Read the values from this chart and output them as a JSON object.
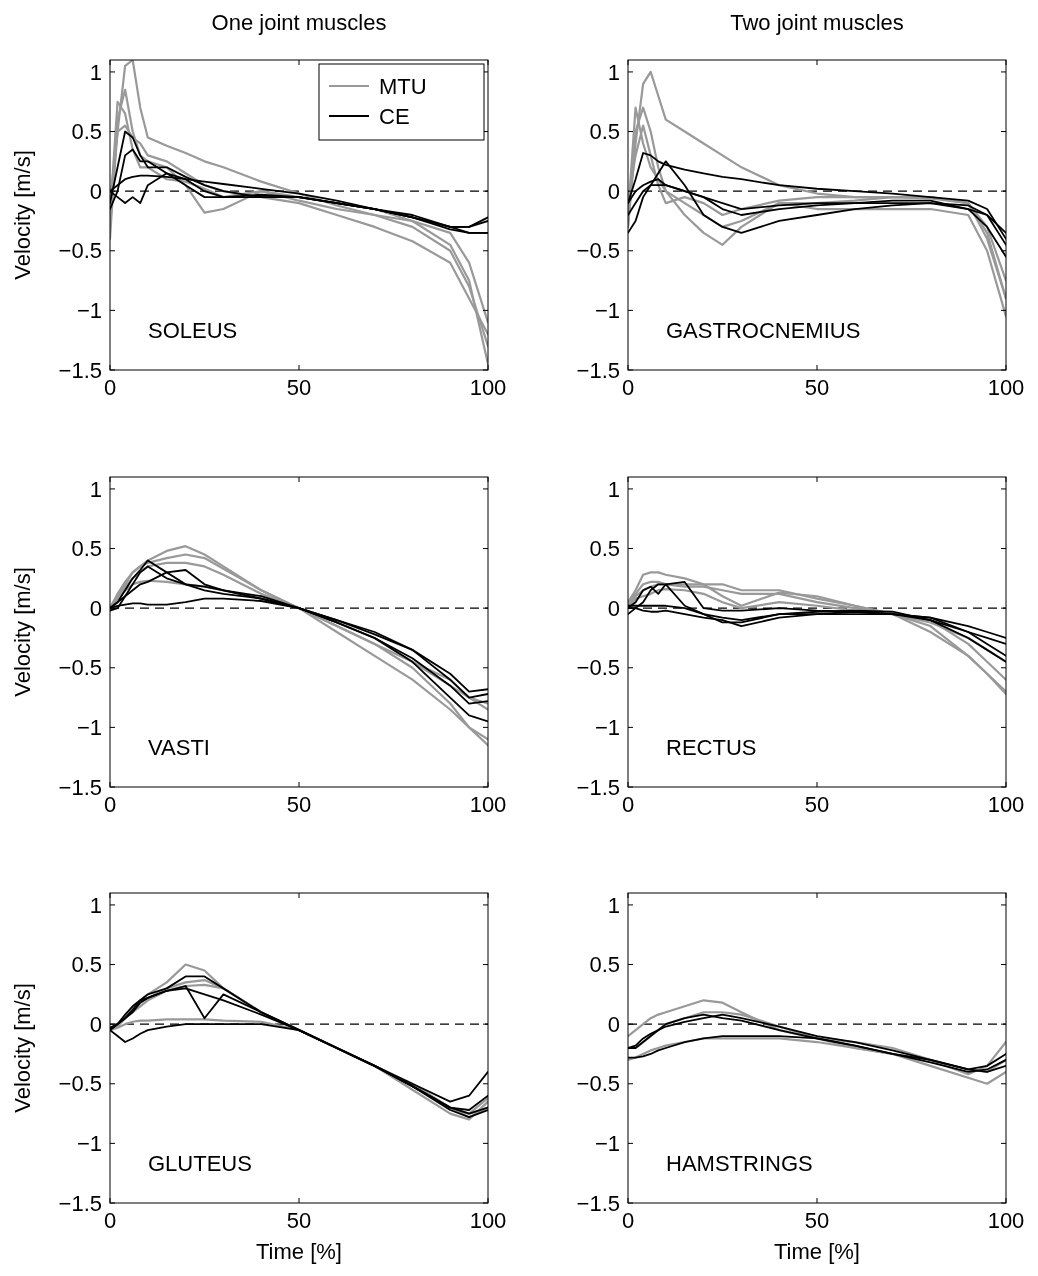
{
  "chart_data": [
    {
      "type": "line",
      "title": "One joint muscles",
      "ylabel": "Velocity [m/s]",
      "annotations": [
        "SOLEUS"
      ],
      "legend": "top right",
      "xlim": [
        0,
        100
      ],
      "xticks": [
        0,
        50,
        100
      ],
      "ylim": [
        -1.5,
        1.1
      ],
      "yticks": [
        -1.5,
        -1,
        -0.5,
        0,
        0.5,
        1
      ],
      "ref_lines": [
        {
          "axis": "y",
          "value": 0,
          "color": "#000000",
          "line_style": "dashed"
        }
      ],
      "x": [
        0,
        2,
        4,
        6,
        8,
        10,
        15,
        20,
        25,
        30,
        40,
        50,
        60,
        70,
        80,
        90,
        95,
        100
      ],
      "series": [
        {
          "name": "MTU",
          "color": "#999999",
          "values": [
            -0.3,
            0.5,
            1.05,
            1.1,
            0.7,
            0.45,
            0.38,
            0.32,
            0.25,
            0.2,
            0.08,
            -0.02,
            -0.12,
            -0.2,
            -0.3,
            -0.5,
            -0.8,
            -1.3
          ]
        },
        {
          "color": "#999999",
          "values": [
            -0.4,
            0.6,
            0.85,
            0.5,
            0.3,
            0.25,
            0.2,
            0.05,
            -0.18,
            -0.15,
            0,
            -0.05,
            -0.1,
            -0.15,
            -0.25,
            -0.45,
            -0.75,
            -1.45
          ]
        },
        {
          "color": "#999999",
          "values": [
            -0.2,
            0.75,
            0.65,
            0.35,
            0.2,
            0.2,
            0.1,
            0.08,
            0.02,
            -0.05,
            0,
            -0.08,
            -0.15,
            -0.2,
            -0.25,
            -0.35,
            -0.6,
            -1.1
          ]
        },
        {
          "color": "#999999",
          "values": [
            -0.1,
            0.5,
            0.55,
            0.45,
            0.4,
            0.3,
            0.25,
            0.15,
            0.05,
            0,
            -0.05,
            -0.1,
            -0.2,
            -0.3,
            -0.42,
            -0.6,
            -0.9,
            -1.2
          ]
        },
        {
          "name": "CE",
          "color": "#000000",
          "values": [
            -0.1,
            0.2,
            0.5,
            0.45,
            0.3,
            0.2,
            0.2,
            0.12,
            0.05,
            0,
            -0.05,
            -0.05,
            -0.1,
            -0.15,
            -0.2,
            -0.3,
            -0.3,
            -0.22
          ]
        },
        {
          "color": "#000000",
          "values": [
            -0.15,
            0,
            0.3,
            0.35,
            0.25,
            0.25,
            0.15,
            0.05,
            -0.05,
            -0.05,
            -0.03,
            -0.05,
            -0.1,
            -0.15,
            -0.22,
            -0.3,
            -0.3,
            -0.25
          ]
        },
        {
          "color": "#000000",
          "values": [
            0,
            -0.05,
            -0.1,
            -0.05,
            -0.1,
            0.05,
            0.15,
            0.1,
            0,
            -0.05,
            -0.05,
            -0.05,
            -0.1,
            -0.15,
            -0.22,
            -0.32,
            -0.35,
            -0.35
          ]
        },
        {
          "color": "#000000",
          "values": [
            0,
            0.05,
            0.1,
            0.12,
            0.13,
            0.13,
            0.12,
            0.1,
            0.08,
            0.06,
            0.02,
            -0.02,
            -0.08,
            -0.15,
            -0.22,
            -0.3,
            -0.35,
            -0.35
          ]
        }
      ]
    },
    {
      "type": "line",
      "title": "Two joint muscles",
      "annotations": [
        "GASTROCNEMIUS"
      ],
      "xlim": [
        0,
        100
      ],
      "xticks": [
        0,
        50,
        100
      ],
      "ylim": [
        -1.5,
        1.1
      ],
      "yticks": [
        -1.5,
        -1,
        -0.5,
        0,
        0.5,
        1
      ],
      "ref_lines": [
        {
          "axis": "y",
          "value": 0,
          "color": "#000000",
          "line_style": "dashed"
        }
      ],
      "x": [
        0,
        2,
        4,
        6,
        8,
        10,
        15,
        20,
        25,
        30,
        40,
        50,
        60,
        70,
        80,
        90,
        95,
        100
      ],
      "series": [
        {
          "color": "#999999",
          "values": [
            -0.3,
            0.4,
            0.9,
            1.0,
            0.8,
            0.6,
            0.5,
            0.4,
            0.3,
            0.2,
            0.05,
            -0.02,
            -0.05,
            -0.05,
            -0.05,
            -0.1,
            -0.35,
            -0.9
          ]
        },
        {
          "color": "#999999",
          "values": [
            -0.3,
            0.5,
            0.7,
            0.5,
            0.2,
            0,
            -0.2,
            -0.35,
            -0.45,
            -0.3,
            -0.1,
            -0.15,
            -0.15,
            -0.15,
            -0.15,
            -0.2,
            -0.5,
            -1.05
          ]
        },
        {
          "color": "#999999",
          "values": [
            -0.2,
            0.7,
            0.4,
            0.2,
            0.1,
            0,
            -0.1,
            -0.2,
            -0.3,
            -0.25,
            -0.1,
            -0.1,
            -0.08,
            -0.05,
            -0.05,
            -0.1,
            -0.3,
            -0.75
          ]
        },
        {
          "color": "#999999",
          "values": [
            -0.1,
            0.3,
            0.55,
            0.3,
            0.05,
            -0.1,
            -0.05,
            -0.1,
            -0.2,
            -0.15,
            -0.08,
            -0.05,
            -0.05,
            -0.05,
            -0.06,
            -0.1,
            -0.4,
            -0.9
          ]
        },
        {
          "color": "#000000",
          "values": [
            -0.1,
            0.1,
            0.32,
            0.3,
            0.25,
            0.22,
            0.18,
            0.15,
            0.12,
            0.1,
            0.05,
            0.02,
            0,
            -0.02,
            -0.05,
            -0.08,
            -0.15,
            -0.4
          ]
        },
        {
          "color": "#000000",
          "values": [
            -0.35,
            -0.25,
            -0.05,
            0.05,
            0.15,
            0.25,
            0.05,
            -0.2,
            -0.3,
            -0.35,
            -0.25,
            -0.2,
            -0.15,
            -0.12,
            -0.1,
            -0.12,
            -0.2,
            -0.45
          ]
        },
        {
          "color": "#000000",
          "values": [
            -0.2,
            -0.1,
            0,
            0.05,
            0.05,
            0.05,
            0,
            -0.05,
            -0.1,
            -0.15,
            -0.12,
            -0.1,
            -0.1,
            -0.08,
            -0.08,
            -0.15,
            -0.2,
            -0.35
          ]
        },
        {
          "color": "#000000",
          "values": [
            -0.1,
            0,
            0.05,
            0.08,
            0.1,
            0.05,
            0,
            -0.05,
            -0.15,
            -0.2,
            -0.15,
            -0.12,
            -0.1,
            -0.1,
            -0.1,
            -0.15,
            -0.3,
            -0.55
          ]
        }
      ]
    },
    {
      "type": "line",
      "ylabel": "Velocity [m/s]",
      "annotations": [
        "VASTI"
      ],
      "xlim": [
        0,
        100
      ],
      "xticks": [
        0,
        50,
        100
      ],
      "ylim": [
        -1.5,
        1.1
      ],
      "yticks": [
        -1.5,
        -1,
        -0.5,
        0,
        0.5,
        1
      ],
      "ref_lines": [
        {
          "axis": "y",
          "value": 0,
          "color": "#000000",
          "line_style": "dashed"
        }
      ],
      "x": [
        0,
        2,
        4,
        6,
        8,
        10,
        15,
        20,
        25,
        30,
        40,
        50,
        60,
        70,
        80,
        90,
        95,
        100
      ],
      "series": [
        {
          "color": "#999999",
          "values": [
            0,
            0.1,
            0.2,
            0.3,
            0.35,
            0.4,
            0.48,
            0.52,
            0.45,
            0.35,
            0.15,
            0,
            -0.15,
            -0.3,
            -0.5,
            -0.8,
            -1.0,
            -1.15
          ]
        },
        {
          "color": "#999999",
          "values": [
            0,
            0.12,
            0.22,
            0.3,
            0.35,
            0.38,
            0.42,
            0.45,
            0.42,
            0.33,
            0.15,
            0,
            -0.2,
            -0.4,
            -0.6,
            -0.85,
            -1.0,
            -1.1
          ]
        },
        {
          "color": "#999999",
          "values": [
            0,
            0.1,
            0.18,
            0.25,
            0.3,
            0.35,
            0.38,
            0.38,
            0.35,
            0.28,
            0.12,
            0,
            -0.12,
            -0.25,
            -0.45,
            -0.65,
            -0.75,
            -0.85
          ]
        },
        {
          "color": "#999999",
          "values": [
            0,
            0.08,
            0.15,
            0.2,
            0.22,
            0.23,
            0.22,
            0.2,
            0.18,
            0.15,
            0.08,
            0,
            -0.15,
            -0.3,
            -0.45,
            -0.6,
            -0.75,
            -0.8
          ]
        },
        {
          "color": "#000000",
          "values": [
            0,
            0.05,
            0.15,
            0.25,
            0.32,
            0.4,
            0.3,
            0.2,
            0.18,
            0.15,
            0.08,
            0,
            -0.1,
            -0.22,
            -0.35,
            -0.6,
            -0.75,
            -0.72
          ]
        },
        {
          "color": "#000000",
          "values": [
            -0.02,
            0,
            0.1,
            0.2,
            0.3,
            0.35,
            0.25,
            0.2,
            0.15,
            0.12,
            0.08,
            0,
            -0.1,
            -0.2,
            -0.35,
            -0.55,
            -0.7,
            -0.68
          ]
        },
        {
          "color": "#000000",
          "values": [
            0,
            0.02,
            0.03,
            0.04,
            0.04,
            0.03,
            0.03,
            0.05,
            0.08,
            0.08,
            0.06,
            0,
            -0.12,
            -0.25,
            -0.42,
            -0.65,
            -0.8,
            -0.78
          ]
        },
        {
          "color": "#000000",
          "values": [
            0,
            0.05,
            0.1,
            0.15,
            0.2,
            0.22,
            0.3,
            0.32,
            0.2,
            0.15,
            0.1,
            0,
            -0.12,
            -0.25,
            -0.45,
            -0.75,
            -0.9,
            -0.95
          ]
        }
      ]
    },
    {
      "type": "line",
      "annotations": [
        "RECTUS"
      ],
      "xlim": [
        0,
        100
      ],
      "xticks": [
        0,
        50,
        100
      ],
      "ylim": [
        -1.5,
        1.1
      ],
      "yticks": [
        -1.5,
        -1,
        -0.5,
        0,
        0.5,
        1
      ],
      "ref_lines": [
        {
          "axis": "y",
          "value": 0,
          "color": "#000000",
          "line_style": "dashed"
        }
      ],
      "x": [
        0,
        2,
        4,
        6,
        8,
        10,
        15,
        20,
        25,
        30,
        40,
        50,
        60,
        70,
        80,
        90,
        95,
        100
      ],
      "series": [
        {
          "color": "#999999",
          "values": [
            0.05,
            0.15,
            0.28,
            0.3,
            0.3,
            0.28,
            0.25,
            0.2,
            0.2,
            0.15,
            0.15,
            0.08,
            0.02,
            -0.05,
            -0.15,
            -0.4,
            -0.55,
            -0.7
          ]
        },
        {
          "color": "#999999",
          "values": [
            0.05,
            0.12,
            0.2,
            0.22,
            0.22,
            0.2,
            0.18,
            0.18,
            0.15,
            0.12,
            0.12,
            0.05,
            0,
            -0.05,
            -0.1,
            -0.3,
            -0.45,
            -0.6
          ]
        },
        {
          "color": "#999999",
          "values": [
            0.02,
            0.1,
            0.15,
            0.18,
            0.2,
            0.2,
            0.2,
            0.2,
            0.1,
            0.02,
            0.13,
            0.1,
            0.02,
            -0.05,
            -0.2,
            -0.4,
            -0.55,
            -0.72
          ]
        },
        {
          "color": "#999999",
          "values": [
            0,
            0.08,
            0.1,
            0.12,
            0.15,
            0.16,
            0.15,
            0.12,
            0.05,
            0,
            0.05,
            0.02,
            -0.02,
            -0.05,
            -0.12,
            -0.25,
            -0.35,
            -0.45
          ]
        },
        {
          "color": "#000000",
          "values": [
            0,
            0.05,
            0.15,
            0.18,
            0.12,
            0.2,
            0.22,
            0,
            -0.02,
            -0.02,
            0,
            -0.02,
            -0.03,
            -0.05,
            -0.08,
            -0.15,
            -0.2,
            -0.25
          ]
        },
        {
          "color": "#000000",
          "values": [
            -0.05,
            0,
            0.05,
            0.15,
            0.2,
            0.2,
            0.02,
            -0.05,
            -0.08,
            -0.1,
            -0.05,
            -0.05,
            -0.05,
            -0.05,
            -0.08,
            -0.2,
            -0.3,
            -0.4
          ]
        },
        {
          "color": "#000000",
          "values": [
            0.02,
            0.02,
            0.02,
            0.02,
            0.02,
            0.02,
            0,
            -0.05,
            -0.12,
            -0.12,
            -0.05,
            -0.03,
            -0.02,
            -0.03,
            -0.1,
            -0.2,
            -0.25,
            -0.3
          ]
        },
        {
          "color": "#000000",
          "values": [
            0,
            0,
            -0.02,
            -0.03,
            -0.03,
            -0.02,
            -0.05,
            -0.08,
            -0.1,
            -0.15,
            -0.08,
            -0.05,
            -0.03,
            -0.05,
            -0.1,
            -0.25,
            -0.35,
            -0.45
          ]
        }
      ]
    },
    {
      "type": "line",
      "xlabel": "Time [%]",
      "ylabel": "Velocity [m/s]",
      "annotations": [
        "GLUTEUS"
      ],
      "xlim": [
        0,
        100
      ],
      "xticks": [
        0,
        50,
        100
      ],
      "ylim": [
        -1.5,
        1.1
      ],
      "yticks": [
        -1.5,
        -1,
        -0.5,
        0,
        0.5,
        1
      ],
      "ref_lines": [
        {
          "axis": "y",
          "value": 0,
          "color": "#000000",
          "line_style": "dashed"
        }
      ],
      "x": [
        0,
        2,
        4,
        6,
        8,
        10,
        15,
        20,
        25,
        30,
        40,
        50,
        60,
        70,
        80,
        90,
        95,
        100
      ],
      "series": [
        {
          "color": "#999999",
          "values": [
            -0.05,
            -0.02,
            0.05,
            0.15,
            0.2,
            0.25,
            0.35,
            0.5,
            0.45,
            0.3,
            0.1,
            -0.05,
            -0.2,
            -0.35,
            -0.55,
            -0.75,
            -0.8,
            -0.65
          ]
        },
        {
          "color": "#999999",
          "values": [
            -0.05,
            0,
            0.05,
            0.12,
            0.18,
            0.22,
            0.3,
            0.35,
            0.37,
            0.3,
            0.1,
            -0.05,
            -0.2,
            -0.35,
            -0.52,
            -0.7,
            -0.78,
            -0.7
          ]
        },
        {
          "color": "#999999",
          "values": [
            -0.05,
            -0.03,
            0,
            0.02,
            0.03,
            0.03,
            0.04,
            0.04,
            0.04,
            0.03,
            0.02,
            -0.05,
            -0.2,
            -0.35,
            -0.52,
            -0.7,
            -0.75,
            -0.62
          ]
        },
        {
          "color": "#999999",
          "values": [
            -0.03,
            0,
            0.05,
            0.1,
            0.15,
            0.2,
            0.28,
            0.32,
            0.33,
            0.3,
            0.1,
            -0.05,
            -0.2,
            -0.35,
            -0.5,
            -0.7,
            -0.75,
            -0.7
          ]
        },
        {
          "color": "#000000",
          "values": [
            -0.03,
            0,
            0.05,
            0.12,
            0.2,
            0.25,
            0.3,
            0.4,
            0.4,
            0.3,
            0.1,
            -0.05,
            -0.2,
            -0.35,
            -0.5,
            -0.65,
            -0.6,
            -0.4
          ]
        },
        {
          "color": "#000000",
          "values": [
            -0.05,
            -0.1,
            -0.15,
            -0.12,
            -0.08,
            -0.05,
            -0.02,
            0,
            0,
            0,
            0,
            -0.05,
            -0.2,
            -0.35,
            -0.52,
            -0.7,
            -0.72,
            -0.6
          ]
        },
        {
          "color": "#000000",
          "values": [
            -0.05,
            0,
            0.05,
            0.1,
            0.18,
            0.22,
            0.28,
            0.32,
            0.05,
            0.25,
            0.1,
            -0.05,
            -0.2,
            -0.35,
            -0.52,
            -0.7,
            -0.75,
            -0.7
          ]
        },
        {
          "color": "#000000",
          "values": [
            -0.05,
            0,
            0.08,
            0.15,
            0.2,
            0.22,
            0.28,
            0.3,
            0.25,
            0.2,
            0.08,
            -0.05,
            -0.2,
            -0.35,
            -0.52,
            -0.72,
            -0.78,
            -0.72
          ]
        }
      ]
    },
    {
      "type": "line",
      "xlabel": "Time [%]",
      "annotations": [
        "HAMSTRINGS"
      ],
      "xlim": [
        0,
        100
      ],
      "xticks": [
        0,
        50,
        100
      ],
      "ylim": [
        -1.5,
        1.1
      ],
      "yticks": [
        -1.5,
        -1,
        -0.5,
        0,
        0.5,
        1
      ],
      "ref_lines": [
        {
          "axis": "y",
          "value": 0,
          "color": "#000000",
          "line_style": "dashed"
        }
      ],
      "x": [
        0,
        2,
        4,
        6,
        8,
        10,
        15,
        20,
        25,
        30,
        40,
        50,
        60,
        70,
        80,
        90,
        95,
        100
      ],
      "series": [
        {
          "color": "#999999",
          "values": [
            -0.1,
            -0.05,
            0,
            0.05,
            0.08,
            0.1,
            0.15,
            0.2,
            0.18,
            0.1,
            -0.05,
            -0.12,
            -0.15,
            -0.2,
            -0.3,
            -0.42,
            -0.35,
            -0.15
          ]
        },
        {
          "color": "#999999",
          "values": [
            -0.2,
            -0.2,
            -0.15,
            -0.1,
            -0.05,
            0,
            0.05,
            0.1,
            0.1,
            0.08,
            -0.02,
            -0.12,
            -0.2,
            -0.25,
            -0.35,
            -0.45,
            -0.5,
            -0.4
          ]
        },
        {
          "color": "#999999",
          "values": [
            -0.3,
            -0.28,
            -0.25,
            -0.22,
            -0.2,
            -0.18,
            -0.15,
            -0.12,
            -0.12,
            -0.12,
            -0.12,
            -0.15,
            -0.2,
            -0.25,
            -0.3,
            -0.38,
            -0.4,
            -0.3
          ]
        },
        {
          "color": "#000000",
          "values": [
            -0.2,
            -0.2,
            -0.15,
            -0.1,
            -0.05,
            0,
            0.05,
            0.08,
            0.05,
            0.03,
            -0.05,
            -0.12,
            -0.18,
            -0.25,
            -0.32,
            -0.4,
            -0.38,
            -0.3
          ]
        },
        {
          "color": "#000000",
          "values": [
            -0.28,
            -0.28,
            -0.27,
            -0.25,
            -0.22,
            -0.2,
            -0.15,
            -0.12,
            -0.1,
            -0.1,
            -0.1,
            -0.12,
            -0.18,
            -0.25,
            -0.3,
            -0.38,
            -0.4,
            -0.35
          ]
        },
        {
          "color": "#000000",
          "values": [
            -0.2,
            -0.18,
            -0.12,
            -0.08,
            -0.05,
            -0.02,
            0.02,
            0.05,
            0.08,
            0.05,
            -0.02,
            -0.1,
            -0.15,
            -0.22,
            -0.3,
            -0.38,
            -0.35,
            -0.25
          ]
        }
      ]
    }
  ]
}
